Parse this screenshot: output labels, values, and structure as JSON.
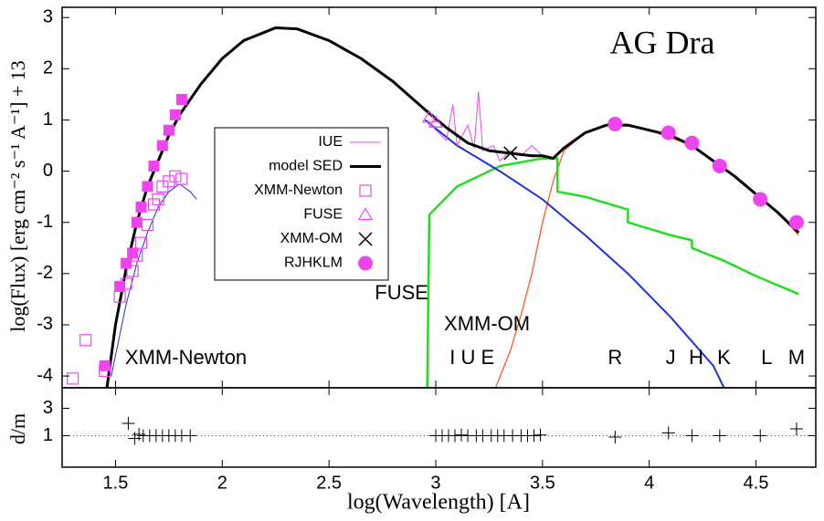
{
  "chart_data": [
    {
      "type": "line",
      "title": "AG Dra",
      "y_label": "log(Flux) [erg cm⁻² s⁻¹ A⁻¹] + 13",
      "xlim": [
        1.25,
        4.78
      ],
      "ylim": [
        -4.23,
        3.2
      ],
      "xticks": [
        1.5,
        2,
        2.5,
        3,
        3.5,
        4,
        4.5
      ],
      "yticks": [
        -4,
        -3,
        -2,
        -1,
        0,
        1,
        2,
        3
      ],
      "legend": "center-left",
      "series": [
        {
          "color": "#ff5a1e",
          "marker": "line",
          "line_width": 1.3,
          "x": [
            3.28,
            3.35,
            3.4,
            3.45,
            3.5,
            3.55,
            3.6,
            3.7,
            3.8,
            3.9,
            4.0,
            4.2,
            4.4,
            4.6,
            4.7
          ],
          "values": [
            -4.23,
            -3.5,
            -2.8,
            -2.0,
            -1.0,
            -0.2,
            0.4,
            0.75,
            0.9,
            0.88,
            0.8,
            0.5,
            -0.1,
            -0.8,
            -1.25
          ]
        },
        {
          "color": "#22dd22",
          "marker": "line",
          "line_width": 2.5,
          "x": [
            2.96,
            2.97,
            3.1,
            3.3,
            3.5,
            3.57,
            3.57,
            3.7,
            3.9,
            3.9,
            4.1,
            4.2,
            4.2,
            4.35,
            4.4,
            4.5,
            4.7
          ],
          "values": [
            -4.23,
            -0.85,
            -0.3,
            0.1,
            0.25,
            0.25,
            -0.4,
            -0.5,
            -0.75,
            -1.0,
            -1.25,
            -1.35,
            -1.5,
            -1.75,
            -1.85,
            -2.05,
            -2.4
          ]
        },
        {
          "color": "#1f2fd8",
          "marker": "line",
          "line_width": 2,
          "x": [
            2.95,
            3.1,
            3.3,
            3.5,
            3.7,
            3.9,
            4.1,
            4.3,
            4.35
          ],
          "values": [
            1.0,
            0.5,
            0.0,
            -0.55,
            -1.25,
            -2.0,
            -2.85,
            -3.8,
            -4.23
          ]
        },
        {
          "color": "#1f2fd8",
          "marker": "line",
          "line_width": 1,
          "x": [
            1.48,
            1.55,
            1.6,
            1.65,
            1.7,
            1.75,
            1.8,
            1.85,
            1.88
          ],
          "values": [
            -4.0,
            -2.6,
            -1.8,
            -1.2,
            -0.7,
            -0.4,
            -0.25,
            -0.4,
            -0.55
          ]
        },
        {
          "name": "IUE",
          "color": "#ee44ee",
          "marker": "line",
          "line_width": 1,
          "x": [
            2.96,
            3.0,
            3.05,
            3.08,
            3.1,
            3.15,
            3.18,
            3.2,
            3.22,
            3.27,
            3.3,
            3.35,
            3.4,
            3.45,
            3.5
          ],
          "values": [
            1.0,
            0.8,
            0.6,
            1.3,
            0.5,
            0.9,
            0.45,
            1.55,
            0.4,
            0.5,
            0.2,
            0.4,
            0.3,
            0.5,
            0.3
          ]
        },
        {
          "name": "model SED",
          "color": "#000000",
          "marker": "line",
          "line_width": 3,
          "x": [
            1.46,
            1.5,
            1.55,
            1.6,
            1.65,
            1.7,
            1.75,
            1.8,
            1.9,
            2.0,
            2.1,
            2.25,
            2.35,
            2.5,
            2.65,
            2.8,
            2.95,
            3.05,
            3.15,
            3.25,
            3.35,
            3.45,
            3.5,
            3.55,
            3.6,
            3.7,
            3.8,
            3.9,
            4.0,
            4.1,
            4.2,
            4.3,
            4.4,
            4.5,
            4.6,
            4.7
          ],
          "values": [
            -4.23,
            -3.0,
            -1.9,
            -1.0,
            -0.3,
            0.2,
            0.7,
            1.1,
            1.7,
            2.2,
            2.55,
            2.8,
            2.78,
            2.55,
            2.2,
            1.75,
            1.2,
            0.85,
            0.55,
            0.4,
            0.35,
            0.3,
            0.3,
            0.25,
            0.45,
            0.75,
            0.9,
            0.9,
            0.8,
            0.7,
            0.5,
            0.2,
            -0.1,
            -0.45,
            -0.8,
            -1.2
          ]
        },
        {
          "name": "XMM-Newton",
          "color": "#ee44ee",
          "marker": "square-open",
          "x": [
            1.3,
            1.36,
            1.45,
            1.52,
            1.55,
            1.58,
            1.6,
            1.62,
            1.65,
            1.68,
            1.7,
            1.72,
            1.75,
            1.78,
            1.81
          ],
          "values": [
            -4.05,
            -3.3,
            -3.9,
            -2.45,
            -2.2,
            -1.95,
            -1.65,
            -1.4,
            -1.05,
            -0.65,
            -0.55,
            -0.3,
            -0.2,
            -0.1,
            -0.15
          ]
        },
        {
          "color": "#ee44ee",
          "marker": "square-filled",
          "x": [
            1.45,
            1.52,
            1.55,
            1.58,
            1.6,
            1.62,
            1.65,
            1.68,
            1.72,
            1.75,
            1.78,
            1.81
          ],
          "values": [
            -3.8,
            -2.25,
            -1.8,
            -1.6,
            -1.0,
            -0.7,
            -0.3,
            0.1,
            0.5,
            0.8,
            1.1,
            1.4
          ]
        },
        {
          "name": "FUSE",
          "color": "#ee44ee",
          "marker": "triangle-open",
          "x": [
            2.97,
            3.0
          ],
          "values": [
            1.05,
            0.95
          ]
        },
        {
          "name": "XMM-OM",
          "color": "#000000",
          "marker": "x",
          "x": [
            3.35
          ],
          "values": [
            0.35
          ]
        },
        {
          "name": "RJHKLM",
          "color": "#ee44ee",
          "marker": "circle-filled",
          "x": [
            3.84,
            4.09,
            4.2,
            4.33,
            4.52,
            4.69
          ],
          "values": [
            0.92,
            0.75,
            0.55,
            0.1,
            -0.55,
            -1.0
          ]
        }
      ],
      "annotations": [
        {
          "text": "FUSE",
          "x": 2.84,
          "y": -2.4
        },
        {
          "text": "XMM-OM",
          "x": 3.24,
          "y": -3.0
        },
        {
          "text": "XMM-Newton",
          "x": 1.83,
          "y": -3.66
        },
        {
          "text": "I U E",
          "x": 3.17,
          "y": -3.66
        },
        {
          "text": "R",
          "x": 3.84,
          "y": -3.66
        },
        {
          "text": "J",
          "x": 4.1,
          "y": -3.66
        },
        {
          "text": "H",
          "x": 4.22,
          "y": -3.66
        },
        {
          "text": "K",
          "x": 4.35,
          "y": -3.66
        },
        {
          "text": "L",
          "x": 4.55,
          "y": -3.66
        },
        {
          "text": "M",
          "x": 4.69,
          "y": -3.66
        }
      ]
    },
    {
      "type": "scatter",
      "x_label": "log(Wavelength) [A]",
      "y_label": "d/m",
      "xlim": [
        1.25,
        4.78
      ],
      "ylim": [
        -1.3,
        4.5
      ],
      "xticks": [
        1.5,
        2,
        2.5,
        3,
        3.5,
        4,
        4.5
      ],
      "yticks": [
        1,
        3
      ],
      "hline": 1,
      "series": [
        {
          "color": "#000000",
          "marker": "plus",
          "x": [
            1.56,
            1.59,
            1.61,
            1.63,
            1.66,
            1.69,
            1.72,
            1.75,
            1.78,
            1.81,
            1.85,
            3.0,
            3.03,
            3.06,
            3.09,
            3.12,
            3.15,
            3.19,
            3.22,
            3.26,
            3.29,
            3.32,
            3.36,
            3.4,
            3.43,
            3.46,
            3.49,
            3.84,
            4.09,
            4.2,
            4.33,
            4.52,
            4.69
          ],
          "values": [
            1.9,
            0.8,
            1.1,
            1.0,
            1.0,
            1.0,
            1.0,
            1.0,
            1.0,
            1.0,
            1.0,
            1.0,
            1.0,
            1.0,
            1.0,
            1.05,
            1.0,
            1.0,
            1.0,
            1.0,
            1.0,
            1.0,
            1.0,
            1.0,
            1.0,
            1.0,
            1.05,
            0.9,
            1.2,
            1.0,
            1.0,
            1.0,
            1.5
          ]
        }
      ]
    }
  ]
}
